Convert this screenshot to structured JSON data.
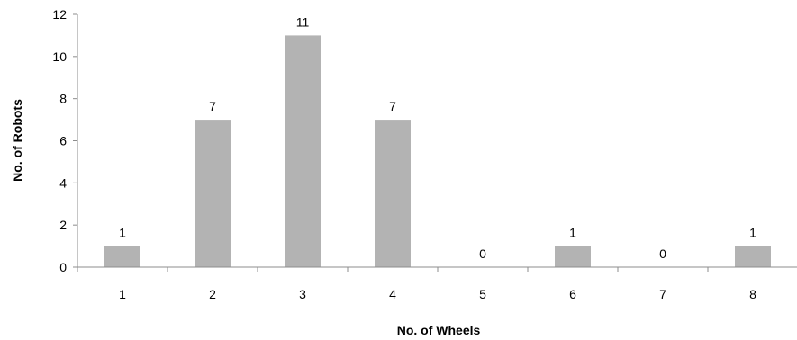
{
  "chart_data": {
    "type": "bar",
    "categories": [
      "1",
      "2",
      "3",
      "4",
      "5",
      "6",
      "7",
      "8"
    ],
    "values": [
      1,
      7,
      11,
      7,
      0,
      1,
      0,
      1
    ],
    "data_labels": [
      "1",
      "7",
      "11",
      "7",
      "0",
      "1",
      "0",
      "1"
    ],
    "title": "",
    "xlabel": "No. of Wheels",
    "ylabel": "No. of Robots",
    "ylim": [
      0,
      12
    ],
    "yticks": [
      0,
      2,
      4,
      6,
      8,
      10,
      12
    ],
    "grid": false,
    "legend": "none",
    "bar_color": "#b3b3b3",
    "axis_color": "#8c8c8c"
  }
}
